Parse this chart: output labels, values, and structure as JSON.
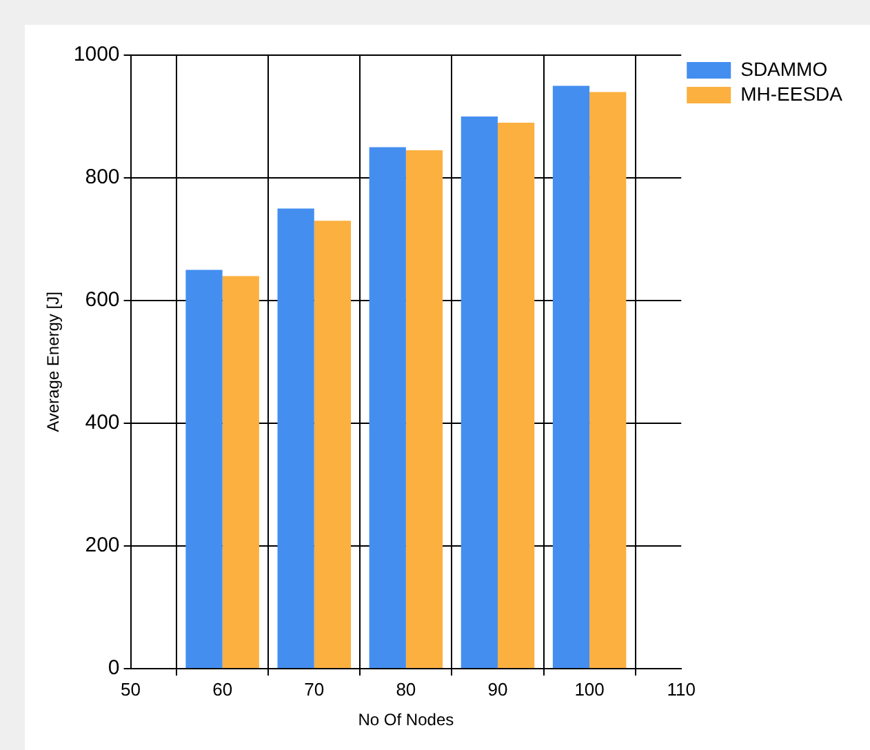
{
  "chart_data": {
    "type": "bar",
    "xlabel": "No Of Nodes",
    "ylabel": "Average Energy [J]",
    "x": [
      60,
      70,
      80,
      90,
      100
    ],
    "series": [
      {
        "name": "SDAMMO",
        "color": "#448ef0",
        "values": [
          650,
          750,
          850,
          900,
          950
        ]
      },
      {
        "name": "MH-EESDA",
        "color": "#fbb040",
        "values": [
          640,
          730,
          845,
          890,
          940
        ]
      }
    ],
    "xlim": [
      50,
      110
    ],
    "xticks": [
      50,
      60,
      70,
      80,
      90,
      100,
      110
    ],
    "ylim": [
      0,
      1000
    ],
    "yticks": [
      0,
      200,
      400,
      600,
      800,
      1000
    ],
    "grid": true,
    "legend": "top right"
  }
}
